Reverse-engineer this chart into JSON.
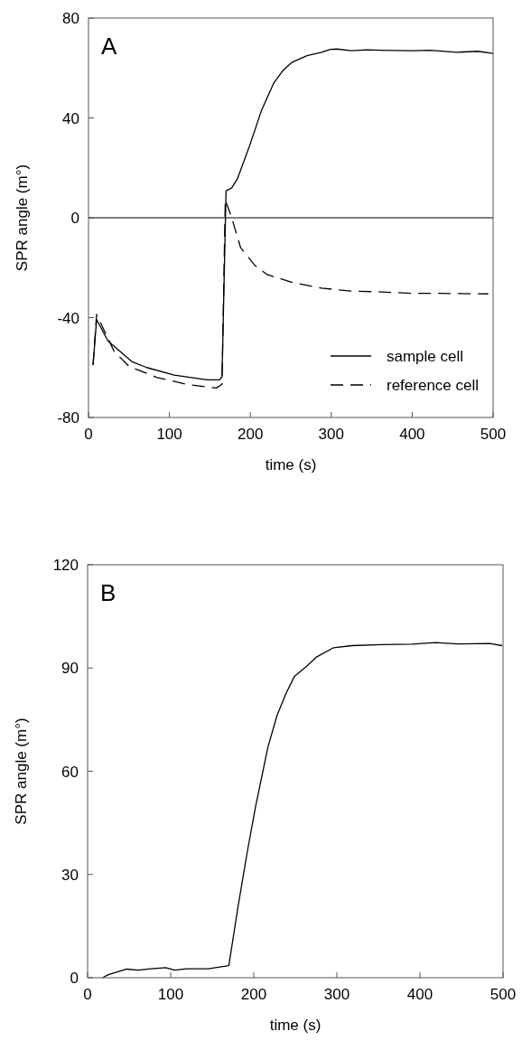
{
  "chart_data": [
    {
      "type": "line",
      "xlabel": "time (s)",
      "ylabel": "SPR angle (m°)",
      "xlim": [
        0,
        500
      ],
      "ylim": [
        -80,
        80
      ],
      "xticks": [
        0,
        100,
        200,
        300,
        400,
        500
      ],
      "yticks": [
        -80,
        -40,
        0,
        40,
        80
      ],
      "annotations": [
        "A"
      ],
      "legend": "bottom right",
      "ref_lines": [
        {
          "axis": "y",
          "value": 0,
          "color": "#000000"
        }
      ],
      "series": [
        {
          "name": "sample cell",
          "color": "#000000",
          "line_style": "solid",
          "x": [
            5.6,
            10,
            24,
            54,
            72,
            106,
            147,
            162,
            165,
            170,
            177,
            184,
            199,
            214,
            229,
            240,
            251,
            270,
            288,
            299,
            307,
            325,
            344,
            362,
            400,
            422,
            455,
            481,
            500
          ],
          "values": [
            -59,
            -40.8,
            -49.3,
            -57.7,
            -60,
            -63,
            -64.9,
            -64.9,
            -63.7,
            10.8,
            12,
            15.6,
            28.8,
            43.2,
            54,
            58.9,
            62.2,
            64.9,
            66.3,
            67.5,
            67.6,
            66.9,
            67.3,
            67.1,
            66.9,
            67.1,
            66.3,
            66.7,
            65.8
          ]
        },
        {
          "name": "reference cell",
          "color": "#000000",
          "line_style": "dashed",
          "x": [
            5.6,
            10,
            31.6,
            50,
            84,
            121,
            158,
            165,
            169,
            177,
            188,
            206,
            221,
            251,
            288,
            325,
            362,
            400,
            437,
            494
          ],
          "values": [
            -59,
            -38.7,
            -53.5,
            -59.5,
            -63.9,
            -66.7,
            -68.2,
            -66.7,
            7.2,
            0,
            -12,
            -19.2,
            -22.8,
            -25.8,
            -28.2,
            -29.4,
            -29.7,
            -30.3,
            -30.3,
            -30.5
          ]
        }
      ]
    },
    {
      "type": "line",
      "xlabel": "time (s)",
      "ylabel": "SPR angle (m°)",
      "xlim": [
        0,
        500
      ],
      "ylim": [
        0,
        120
      ],
      "xticks": [
        0,
        100,
        200,
        300,
        400,
        500
      ],
      "yticks": [
        0,
        30,
        60,
        90,
        120
      ],
      "annotations": [
        "B"
      ],
      "series": [
        {
          "color": "#000000",
          "line_style": "solid",
          "x": [
            18,
            25,
            47,
            61,
            76,
            94,
            105,
            119,
            145,
            170,
            181,
            192,
            202,
            217,
            228,
            239,
            249,
            264,
            275,
            296,
            318,
            354,
            390,
            419,
            445,
            484,
            499
          ],
          "values": [
            0,
            0.9,
            2.5,
            2.2,
            2.6,
            2.9,
            2.2,
            2.6,
            2.6,
            3.5,
            20.6,
            36.3,
            49.5,
            67,
            76.2,
            82.7,
            87.6,
            90.6,
            93.1,
            95.9,
            96.5,
            96.8,
            96.9,
            97.4,
            97,
            97.1,
            96.5
          ]
        }
      ]
    }
  ]
}
